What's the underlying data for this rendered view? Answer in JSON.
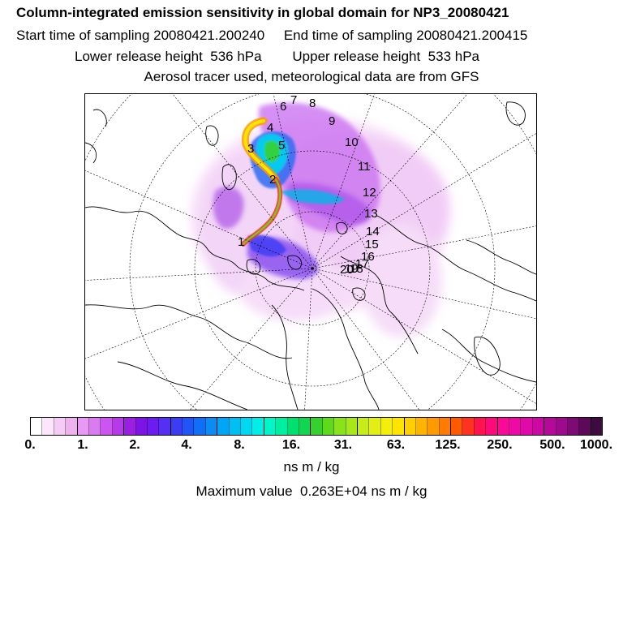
{
  "header": {
    "title": "Column-integrated emission sensitivity in global domain for NP3_20080421",
    "line2": "Start time of sampling 20080421.200240     End time of sampling 20080421.200415",
    "line3": "Lower release height  536 hPa        Upper release height  533 hPa",
    "line4": "Aerosol tracer used, meteorological data are from GFS"
  },
  "map": {
    "projection": "north polar stereographic",
    "day_labels": [
      "1",
      "2",
      "3",
      "4",
      "5",
      "6",
      "7",
      "8",
      "9",
      "10",
      "11",
      "12",
      "13",
      "14",
      "15",
      "16",
      "17",
      "18",
      "19",
      "20"
    ]
  },
  "colorbar": {
    "tick_labels": [
      "0.",
      "1.",
      "2.",
      "4.",
      "8.",
      "16.",
      "31.",
      "63.",
      "125.",
      "250.",
      "500.",
      "1000."
    ],
    "colors": [
      "#ffffff",
      "#fbe6fb",
      "#f5ccf5",
      "#eeb2ee",
      "#e899f5",
      "#d97cf2",
      "#cc55f0",
      "#b63ae8",
      "#9a1fe0",
      "#7d14e6",
      "#6d1cf0",
      "#5530f2",
      "#3c3cf5",
      "#2255f7",
      "#1070f5",
      "#0a8cf2",
      "#00a6f5",
      "#00c0f2",
      "#00d8f2",
      "#00eee8",
      "#00f5c8",
      "#00eea0",
      "#00e070",
      "#10d650",
      "#35d12f",
      "#60d91a",
      "#8ae21a",
      "#a8e81a",
      "#c6ec1a",
      "#e2ee14",
      "#f3ee0a",
      "#ffe400",
      "#ffcf00",
      "#ffb400",
      "#ff9a00",
      "#ff7c00",
      "#ff5a00",
      "#ff3320",
      "#ff1450",
      "#ff0a7a",
      "#fa0a96",
      "#ee0aa5",
      "#e00aa8",
      "#cc0aa3",
      "#b5099a",
      "#9d0a8c",
      "#7e0a74",
      "#5c0a58",
      "#3f0a40"
    ],
    "units": "ns m / kg"
  },
  "max_value": {
    "text": "Maximum value  0.263E+04 ns m / kg",
    "value": 2630
  }
}
